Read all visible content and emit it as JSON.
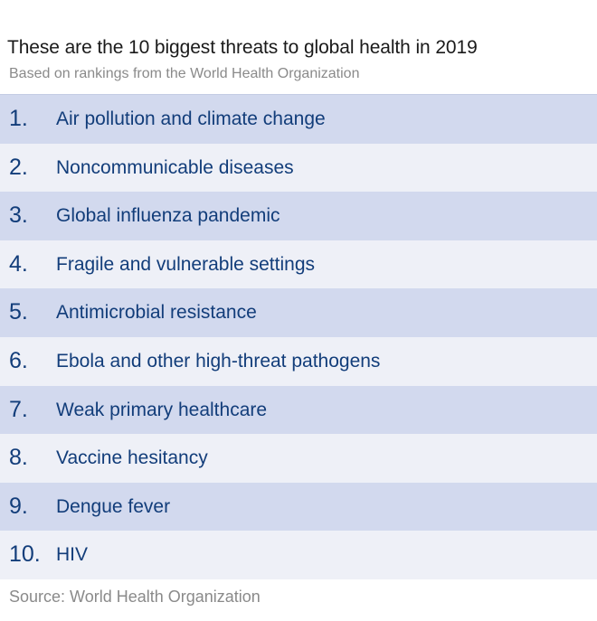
{
  "chart_data": {
    "type": "table",
    "title": "These are the 10 biggest threats to global health in 2019",
    "subtitle": "Based on rankings from the World Health Organization",
    "rows": [
      {
        "rank": "1.",
        "label": "Air pollution and climate change"
      },
      {
        "rank": "2.",
        "label": "Noncommunicable diseases"
      },
      {
        "rank": "3.",
        "label": "Global influenza pandemic"
      },
      {
        "rank": "4.",
        "label": "Fragile and vulnerable settings"
      },
      {
        "rank": "5.",
        "label": "Antimicrobial resistance"
      },
      {
        "rank": "6.",
        "label": "Ebola and other high-threat pathogens"
      },
      {
        "rank": "7.",
        "label": "Weak primary healthcare"
      },
      {
        "rank": "8.",
        "label": "Vaccine hesitancy"
      },
      {
        "rank": "9.",
        "label": "Dengue fever"
      },
      {
        "rank": "10.",
        "label": "HIV"
      }
    ],
    "source": "Source: World Health Organization",
    "colors": {
      "row_odd": "#d2d9ee",
      "row_even": "#eef0f7",
      "text_accent": "#123d7a"
    }
  }
}
